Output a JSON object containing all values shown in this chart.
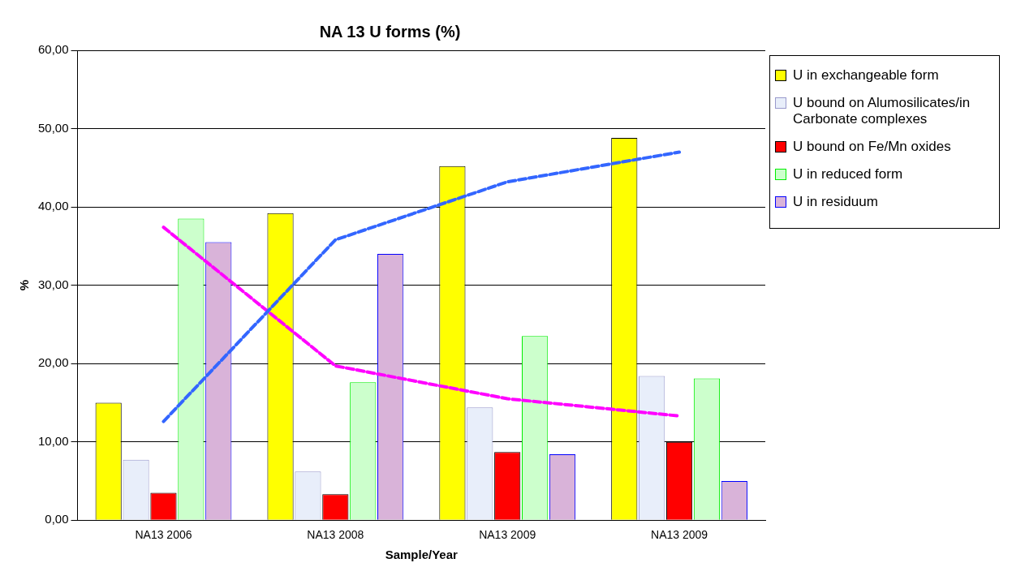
{
  "chart_data": {
    "type": "bar",
    "title": "NA 13 U forms (%)",
    "xlabel": "Sample/Year",
    "ylabel": "%",
    "categories": [
      "NA13 2006",
      "NA13 2008",
      "NA13 2009",
      "NA13 2009"
    ],
    "series": [
      {
        "name": "U in exchangeable form",
        "color": "#ffff00",
        "values": [
          15.0,
          39.2,
          45.2,
          48.8
        ]
      },
      {
        "name": "U bound on Alumosilicates/in Carbonate complexes",
        "color": "#e8eefa",
        "values": [
          7.7,
          6.2,
          14.4,
          18.4
        ]
      },
      {
        "name": "U bound on Fe/Mn oxides",
        "color": "#ff0000",
        "values": [
          3.5,
          3.3,
          8.7,
          10.0
        ]
      },
      {
        "name": "U in reduced form",
        "color": "#ccffcc",
        "values": [
          38.5,
          17.6,
          23.5,
          18.1
        ]
      },
      {
        "name": "U in residuum",
        "color": "#d9b3d9",
        "values": [
          35.5,
          34.0,
          8.4,
          5.0
        ]
      },
      {
        "type": "line",
        "color": "#3366ff",
        "line_style": "dashed",
        "values": [
          12.6,
          35.8,
          43.2,
          47.0
        ]
      },
      {
        "type": "line",
        "color": "#ff00ff",
        "line_style": "dashed",
        "values": [
          37.4,
          19.7,
          15.5,
          13.3
        ]
      }
    ],
    "ylim": [
      0,
      60
    ],
    "yticks": [
      {
        "value": 0,
        "label": "0,00"
      },
      {
        "value": 10,
        "label": "10,00"
      },
      {
        "value": 20,
        "label": "20,00"
      },
      {
        "value": 30,
        "label": "30,00"
      },
      {
        "value": 40,
        "label": "40,00"
      },
      {
        "value": 50,
        "label": "50,00"
      },
      {
        "value": 60,
        "label": "60,00"
      }
    ],
    "grid": "y",
    "legend": "right",
    "marker": "none"
  }
}
